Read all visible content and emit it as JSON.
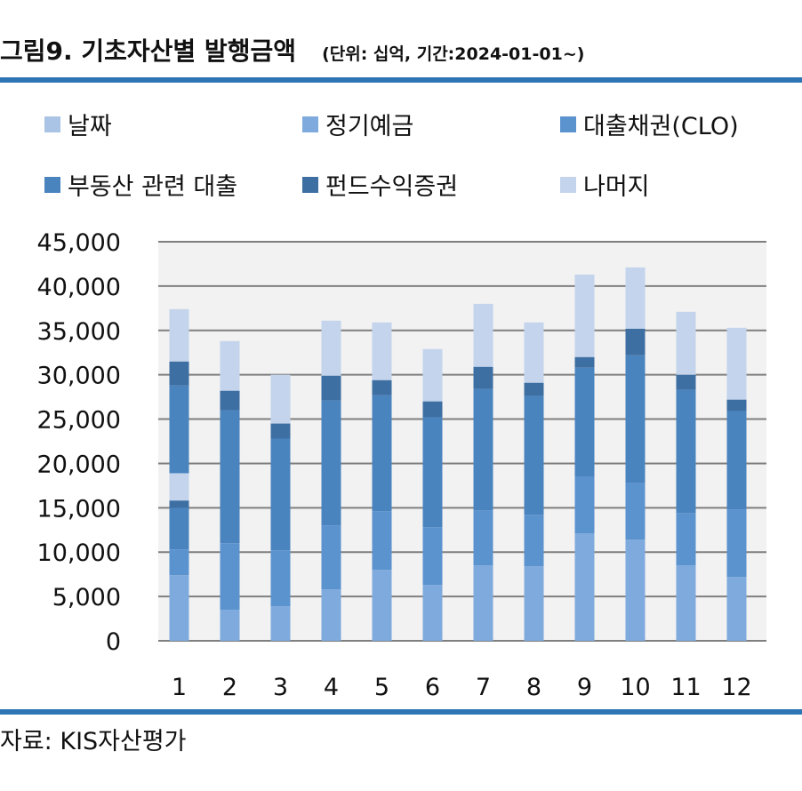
{
  "title": {
    "main": "그림9. 기초자산별 발행금액",
    "sub": "(단위: 십억, 기간:2024-01-01~)"
  },
  "source": "자료: KIS자산평가",
  "colors": {
    "rule": "#2e75b6",
    "grid": "#7f7f7f",
    "plot_bg": "#f2f2f2"
  },
  "chart_data": {
    "type": "bar",
    "stacked": true,
    "title": "그림9. 기초자산별 발행금액",
    "subtitle": "(단위: 십억, 기간:2024-01-01~)",
    "categories": [
      "1",
      "2",
      "3",
      "4",
      "5",
      "6",
      "7",
      "8",
      "9",
      "10",
      "11",
      "12"
    ],
    "ylim": [
      0,
      45000
    ],
    "yticks": [
      0,
      5000,
      10000,
      15000,
      20000,
      25000,
      30000,
      35000,
      40000,
      45000
    ],
    "ytick_labels": [
      "0",
      "5,000",
      "10,000",
      "15,000",
      "20,000",
      "25,000",
      "30,000",
      "35,000",
      "40,000",
      "45,000"
    ],
    "grid": true,
    "legend_position": "top",
    "series": [
      {
        "name": "날짜",
        "color": "#a9c4e4",
        "values": [
          0,
          0,
          0,
          0,
          0,
          0,
          0,
          0,
          0,
          0,
          0,
          0
        ]
      },
      {
        "name": "정기예금",
        "color": "#7eaadd",
        "values": [
          7400,
          3500,
          3900,
          5800,
          8000,
          6300,
          8500,
          8400,
          12100,
          11400,
          8500,
          7200
        ]
      },
      {
        "name": "대출채권(CLO)",
        "color": "#5b93cf",
        "values": [
          2900,
          7500,
          6300,
          7200,
          6600,
          6500,
          6200,
          5800,
          6400,
          6400,
          5900,
          7600
        ]
      },
      {
        "name": "부동산 관련 대출",
        "color": "#4a84bf",
        "values": [
          18500,
          15000,
          12600,
          14100,
          13100,
          12400,
          13700,
          13400,
          12300,
          14400,
          13900,
          11100
        ]
      },
      {
        "name": "펀드수익증권",
        "color": "#3e6fa3",
        "values": [
          2700,
          2200,
          1700,
          2800,
          1700,
          1800,
          2500,
          1500,
          1200,
          3000,
          1700,
          1300
        ]
      },
      {
        "name": "나머지",
        "color": "#c3d4ec",
        "values": [
          5900,
          5600,
          5500,
          6200,
          6500,
          5900,
          7100,
          6800,
          9300,
          6900,
          7100,
          8100
        ]
      }
    ],
    "inset_segments": [
      {
        "category": "1",
        "from": 15800,
        "to": 18900,
        "fill": "#c3d4ec"
      },
      {
        "category": "1",
        "from": 15000,
        "to": 15800,
        "fill": "#3e6fa3"
      }
    ]
  }
}
